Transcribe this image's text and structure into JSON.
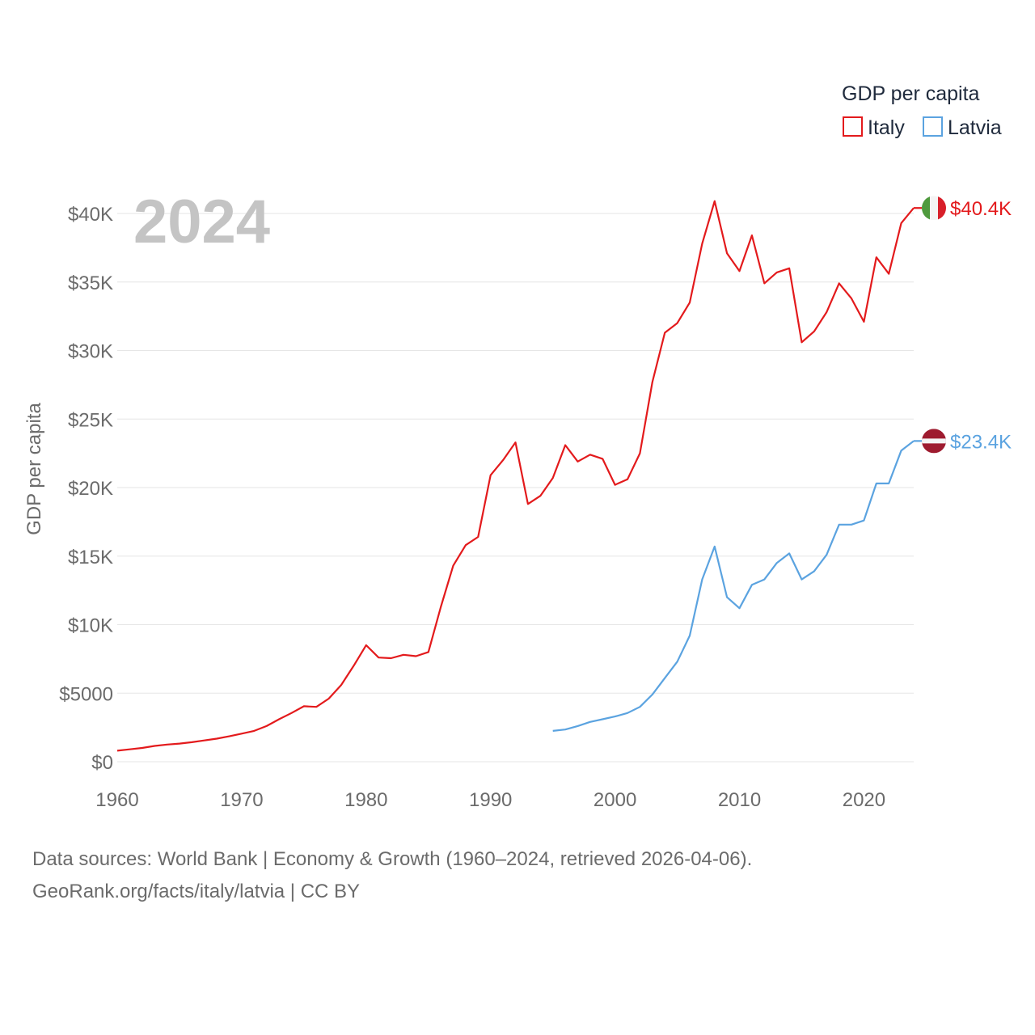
{
  "chart_data": {
    "type": "line",
    "year_label": "2024",
    "ylabel": "GDP per capita",
    "legend_title": "GDP per capita",
    "xlim": [
      1960,
      2024
    ],
    "ylim": [
      0,
      40000
    ],
    "x_ticks": [
      {
        "value": 1960,
        "label": "1960"
      },
      {
        "value": 1970,
        "label": "1970"
      },
      {
        "value": 1980,
        "label": "1980"
      },
      {
        "value": 1990,
        "label": "1990"
      },
      {
        "value": 2000,
        "label": "2000"
      },
      {
        "value": 2010,
        "label": "2010"
      },
      {
        "value": 2020,
        "label": "2020"
      }
    ],
    "y_ticks": [
      {
        "value": 0,
        "label": "$0"
      },
      {
        "value": 5000,
        "label": "$5000"
      },
      {
        "value": 10000,
        "label": "$10K"
      },
      {
        "value": 15000,
        "label": "$15K"
      },
      {
        "value": 20000,
        "label": "$20K"
      },
      {
        "value": 25000,
        "label": "$25K"
      },
      {
        "value": 30000,
        "label": "$30K"
      },
      {
        "value": 35000,
        "label": "$35K"
      },
      {
        "value": 40000,
        "label": "$40K"
      }
    ],
    "series": [
      {
        "name": "Italy",
        "color": "#e31a1c",
        "end_label": "$40.4K",
        "flag": "italy-flag",
        "x": [
          1960,
          1961,
          1962,
          1963,
          1964,
          1965,
          1966,
          1967,
          1968,
          1969,
          1970,
          1971,
          1972,
          1973,
          1974,
          1975,
          1976,
          1977,
          1978,
          1979,
          1980,
          1981,
          1982,
          1983,
          1984,
          1985,
          1986,
          1987,
          1988,
          1989,
          1990,
          1991,
          1992,
          1993,
          1994,
          1995,
          1996,
          1997,
          1998,
          1999,
          2000,
          2001,
          2002,
          2003,
          2004,
          2005,
          2006,
          2007,
          2008,
          2009,
          2010,
          2011,
          2012,
          2013,
          2014,
          2015,
          2016,
          2017,
          2018,
          2019,
          2020,
          2021,
          2022,
          2023,
          2024
        ],
        "values": [
          800,
          900,
          1000,
          1150,
          1250,
          1320,
          1420,
          1550,
          1680,
          1850,
          2050,
          2250,
          2600,
          3100,
          3550,
          4050,
          4000,
          4600,
          5600,
          7000,
          8500,
          7600,
          7550,
          7800,
          7700,
          8000,
          11300,
          14300,
          15800,
          16400,
          20900,
          22000,
          23300,
          18800,
          19400,
          20700,
          23100,
          21900,
          22400,
          22100,
          20200,
          20600,
          22500,
          27700,
          31300,
          32000,
          33500,
          37800,
          40900,
          37100,
          35800,
          38400,
          34900,
          35700,
          36000,
          30600,
          31400,
          32800,
          34900,
          33800,
          32100,
          36800,
          35600,
          39300,
          40400
        ]
      },
      {
        "name": "Latvia",
        "color": "#5ba3e0",
        "end_label": "$23.4K",
        "flag": "latvia-flag",
        "x": [
          1995,
          1996,
          1997,
          1998,
          1999,
          2000,
          2001,
          2002,
          2003,
          2004,
          2005,
          2006,
          2007,
          2008,
          2009,
          2010,
          2011,
          2012,
          2013,
          2014,
          2015,
          2016,
          2017,
          2018,
          2019,
          2020,
          2021,
          2022,
          2023,
          2024
        ],
        "values": [
          2250,
          2350,
          2600,
          2900,
          3100,
          3300,
          3550,
          4000,
          4900,
          6100,
          7300,
          9200,
          13300,
          15700,
          12000,
          11200,
          12900,
          13300,
          14500,
          15200,
          13300,
          13900,
          15100,
          17300,
          17300,
          17600,
          20300,
          20300,
          22700,
          23400
        ]
      }
    ]
  },
  "footer": {
    "line1": "Data sources: World Bank | Economy & Growth (1960–2024, retrieved 2026-04-06).",
    "line2": "GeoRank.org/facts/italy/latvia | CC BY"
  }
}
